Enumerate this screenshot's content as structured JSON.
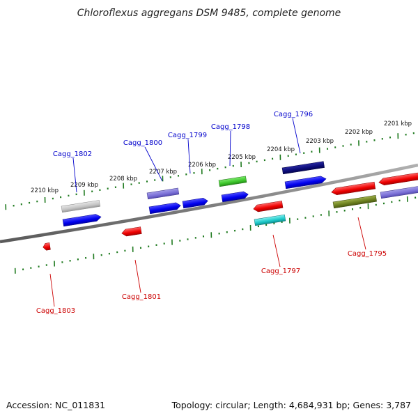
{
  "title": "Chloroflexus aggregans DSM 9485, complete genome",
  "footer": {
    "accession": "Accession: NC_011831",
    "stats": "Topology: circular; Length: 4,684,931 bp; Genes: 3,787"
  },
  "colors": {
    "forward_label": "#0000cc",
    "reverse_label": "#cc0000",
    "tick": "#1f7a1f",
    "backbone": "#808080"
  },
  "scale_ticks": [
    "2210 kbp",
    "2209 kbp",
    "2208 kbp",
    "2207 kbp",
    "2206 kbp",
    "2205 kbp",
    "2204 kbp",
    "2203 kbp",
    "2202 kbp",
    "2201 kbp"
  ],
  "genes": [
    {
      "label": "Cagg_1802",
      "strand": "forward"
    },
    {
      "label": "Cagg_1800",
      "strand": "forward"
    },
    {
      "label": "Cagg_1799",
      "strand": "forward"
    },
    {
      "label": "Cagg_1798",
      "strand": "forward"
    },
    {
      "label": "Cagg_1796",
      "strand": "forward"
    },
    {
      "label": "Cagg_1803",
      "strand": "reverse"
    },
    {
      "label": "Cagg_1801",
      "strand": "reverse"
    },
    {
      "label": "Cagg_1797",
      "strand": "reverse"
    },
    {
      "label": "Cagg_1795",
      "strand": "reverse"
    }
  ]
}
